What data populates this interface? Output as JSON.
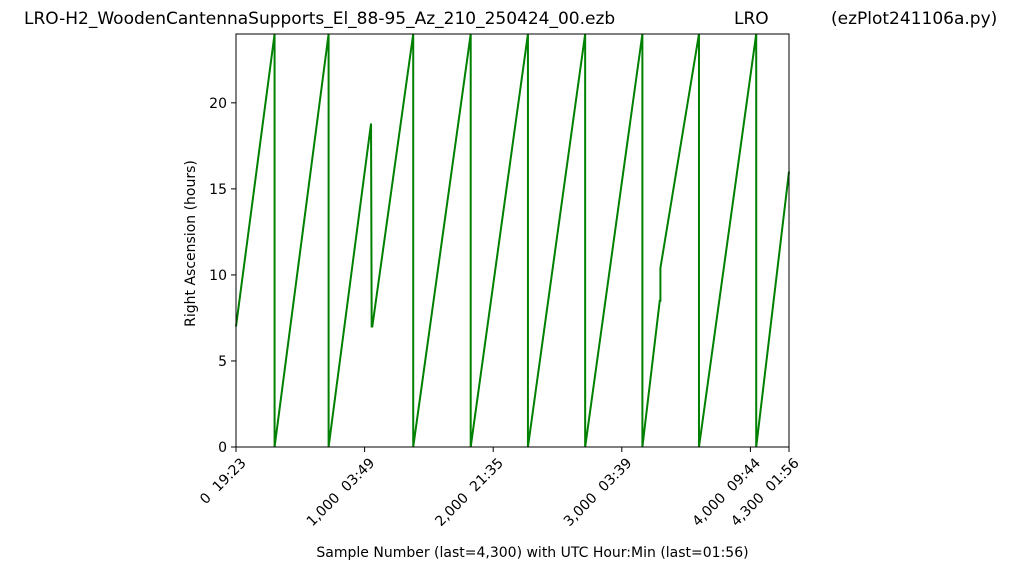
{
  "header": {
    "file_title": "LRO-H2_WoodenCantennaSupports_El_88-95_Az_210_250424_00.ezb",
    "station": "LRO",
    "script_name": "(ezPlot241106a.py)"
  },
  "chart_data": {
    "type": "line",
    "title": "",
    "xlabel": "Sample Number (last=4,300) with UTC Hour:Min (last=01:56)",
    "ylabel": "Right Ascension (hours)",
    "xlim": [
      0,
      4300
    ],
    "ylim": [
      0,
      24
    ],
    "grid": false,
    "line_color": "#008000",
    "x_ticks": [
      {
        "value": 0,
        "label": "0  19:23"
      },
      {
        "value": 1000,
        "label": "1,000  03:49"
      },
      {
        "value": 2000,
        "label": "2,000  21:35"
      },
      {
        "value": 3000,
        "label": "3,000  03:39"
      },
      {
        "value": 4000,
        "label": "4,000  09:44"
      },
      {
        "value": 4300,
        "label": "4,300  01:56"
      }
    ],
    "y_ticks": [
      0,
      5,
      10,
      15,
      20
    ],
    "series": [
      {
        "x": [
          0,
          300,
          300,
          720,
          720,
          1050,
          1055,
          1060,
          1378,
          1378,
          1825,
          1825,
          2270,
          2270,
          2715,
          2715,
          3160,
          3160,
          3295,
          3300,
          3300,
          3600,
          3600,
          4045,
          4045,
          4300
        ],
        "y": [
          7,
          24,
          0,
          24,
          0,
          18.8,
          7,
          7,
          24,
          0,
          24,
          0,
          24,
          0,
          24,
          0,
          24,
          0,
          8.5,
          8.5,
          10.4,
          24,
          0,
          24,
          0,
          16
        ]
      }
    ]
  }
}
